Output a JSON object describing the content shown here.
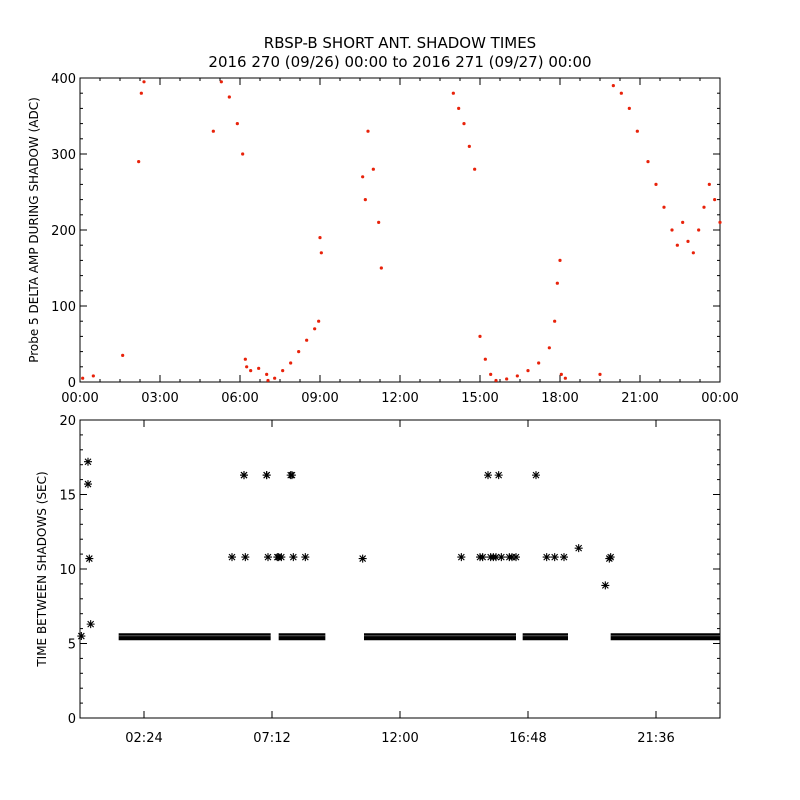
{
  "title_line1": "RBSP-B SHORT ANT. SHADOW TIMES",
  "title_line2": "2016 270 (09/26) 00:00 to 2016 271 (09/27) 00:00",
  "colors": {
    "top_points": "#e8220a",
    "bottom_points": "#000000",
    "axes": "#000000"
  },
  "chart_data": [
    {
      "type": "scatter",
      "ylabel": "Probe 5 DELTA AMP DURING SHADOW (ADC)",
      "xlabel": "",
      "x_unit": "hours since 2016-09-26 00:00",
      "xlim": [
        0,
        24
      ],
      "ylim": [
        0,
        400
      ],
      "x_tick_values": [
        0,
        3,
        6,
        9,
        12,
        15,
        18,
        21,
        24
      ],
      "x_tick_labels": [
        "00:00",
        "03:00",
        "06:00",
        "09:00",
        "12:00",
        "15:00",
        "18:00",
        "21:00",
        "00:00"
      ],
      "y_tick_values": [
        0,
        100,
        200,
        300,
        400
      ],
      "y_tick_labels": [
        "0",
        "100",
        "200",
        "300",
        "400"
      ],
      "grid": false,
      "series": [
        {
          "color": "#e8220a",
          "x": [
            0.1,
            0.5,
            1.6,
            2.2,
            2.3,
            2.4,
            5.0,
            5.3,
            5.6,
            5.9,
            6.1,
            6.2,
            6.25,
            6.4,
            6.7,
            7.0,
            7.05,
            7.3,
            7.6,
            7.9,
            8.2,
            8.5,
            8.8,
            8.95,
            9.0,
            9.05,
            10.6,
            10.7,
            10.8,
            11.0,
            11.2,
            11.3,
            14.0,
            14.2,
            14.4,
            14.6,
            14.8,
            15.0,
            15.2,
            15.4,
            15.6,
            16.0,
            16.4,
            16.8,
            17.2,
            17.6,
            17.8,
            17.9,
            18.0,
            18.05,
            18.2,
            19.5,
            20.0,
            20.3,
            20.6,
            20.9,
            21.3,
            21.6,
            21.9,
            22.2,
            22.4,
            22.6,
            22.8,
            23.0,
            23.2,
            23.4,
            23.6,
            23.8,
            24.0
          ],
          "y": [
            5,
            8,
            35,
            290,
            380,
            395,
            330,
            395,
            375,
            340,
            300,
            30,
            20,
            15,
            18,
            10,
            2,
            5,
            15,
            25,
            40,
            55,
            70,
            80,
            190,
            170,
            270,
            240,
            330,
            280,
            210,
            150,
            380,
            360,
            340,
            310,
            280,
            60,
            30,
            10,
            2,
            4,
            8,
            15,
            25,
            45,
            80,
            130,
            160,
            10,
            5,
            10,
            390,
            380,
            360,
            330,
            290,
            260,
            230,
            200,
            180,
            210,
            185,
            170,
            200,
            230,
            260,
            240,
            210
          ]
        }
      ]
    },
    {
      "type": "scatter",
      "ylabel": "TIME BETWEEN SHADOWS (SEC)",
      "xlabel": "",
      "x_unit": "hours since 2016-09-26 00:00",
      "xlim": [
        0,
        24
      ],
      "ylim": [
        0,
        20
      ],
      "x_tick_values": [
        2.4,
        7.2,
        12.0,
        16.8,
        21.6
      ],
      "x_tick_labels": [
        "02:24",
        "07:12",
        "12:00",
        "16:48",
        "21:36"
      ],
      "y_tick_values": [
        0,
        5,
        10,
        15,
        20
      ],
      "y_tick_labels": [
        "0",
        "5",
        "10",
        "15",
        "20"
      ],
      "grid": false,
      "marker": "asterisk",
      "baseline_segments": [
        {
          "x_start": 1.45,
          "x_end": 7.15,
          "y": 5.45
        },
        {
          "x_start": 7.45,
          "x_end": 9.2,
          "y": 5.45
        },
        {
          "x_start": 10.65,
          "x_end": 16.35,
          "y": 5.45
        },
        {
          "x_start": 16.6,
          "x_end": 18.3,
          "y": 5.45
        },
        {
          "x_start": 19.9,
          "x_end": 24.0,
          "y": 5.45
        }
      ],
      "series": [
        {
          "color": "#000000",
          "x": [
            0.05,
            0.3,
            0.3,
            0.35,
            0.4,
            5.7,
            6.15,
            6.15,
            6.2,
            7.0,
            7.0,
            7.05,
            7.4,
            7.45,
            7.55,
            7.9,
            7.95,
            8.0,
            8.45,
            10.6,
            14.3,
            15.0,
            15.1,
            15.3,
            15.4,
            15.5,
            15.6,
            15.7,
            15.8,
            16.1,
            16.2,
            16.35,
            17.1,
            17.5,
            17.8,
            18.15,
            18.7,
            19.7,
            19.85,
            19.9
          ],
          "y": [
            5.5,
            17.2,
            15.7,
            10.7,
            6.3,
            10.8,
            16.3,
            16.3,
            10.8,
            16.3,
            16.3,
            10.8,
            10.8,
            10.8,
            10.8,
            16.3,
            16.3,
            10.8,
            10.8,
            10.7,
            10.8,
            10.8,
            10.8,
            16.3,
            10.8,
            10.8,
            10.8,
            16.3,
            10.8,
            10.8,
            10.8,
            10.8,
            16.3,
            10.8,
            10.8,
            10.8,
            11.4,
            8.9,
            10.7,
            10.8
          ]
        }
      ]
    }
  ]
}
